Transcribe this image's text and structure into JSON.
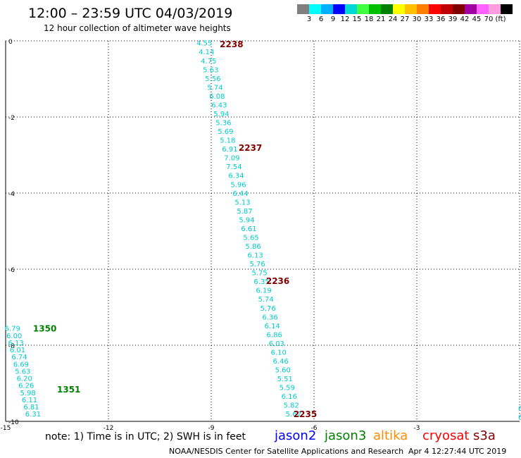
{
  "header": {
    "title": "12:00 – 23:59 UTC 04/03/2019",
    "subtitle": "12 hour collection of altimeter wave heights"
  },
  "color_scale": {
    "colors": [
      "#808080",
      "#00ffff",
      "#00b0ff",
      "#0000ff",
      "#00d8d8",
      "#40ff40",
      "#00c000",
      "#008000",
      "#ffff00",
      "#ffc000",
      "#ff8000",
      "#ff0000",
      "#c00000",
      "#800000",
      "#a000a0",
      "#ff60ff",
      "#ff9ce0",
      "#000000"
    ],
    "labels": [
      "3",
      "6",
      "9",
      "12",
      "15",
      "18",
      "21",
      "24",
      "27",
      "30",
      "33",
      "36",
      "39",
      "42",
      "45",
      "70",
      "(ft)"
    ]
  },
  "chart_data": {
    "type": "scatter",
    "title": "12:00 – 23:59 UTC 04/03/2019",
    "subtitle": "12 hour collection of altimeter wave heights",
    "xlim": [
      -15,
      0
    ],
    "ylim": [
      -10,
      0
    ],
    "xticks": [
      "-15",
      "-12",
      "-9",
      "-6",
      "-3"
    ],
    "yticks": [
      "0",
      "-2",
      "-4",
      "-6",
      "-8",
      "-10"
    ],
    "grid": true,
    "point_color": "#00cccc",
    "time_color_track1": "#800000",
    "time_color_track2": "#008000",
    "track1": {
      "satellite": "cryosat",
      "x_start": -9.2,
      "x_end": -6.6,
      "y_start": -0.05,
      "y_end": -9.8,
      "values": [
        "4.55",
        "4.14",
        "4.75",
        "5.63",
        "5.56",
        "5.74",
        "6.08",
        "6.43",
        "5.94",
        "5.36",
        "5.69",
        "5.18",
        "6.91",
        "7.09",
        "7.54",
        "6.34",
        "5.96",
        "6.44",
        "5.13",
        "5.87",
        "5.94",
        "6.61",
        "5.65",
        "5.86",
        "6.13",
        "5.76",
        "5.75",
        "6.35",
        "6.19",
        "5.74",
        "5.76",
        "6.36",
        "6.14",
        "6.86",
        "6.03",
        "6.10",
        "6.46",
        "5.60",
        "5.51",
        "5.59",
        "6.16",
        "5.82",
        "5.62"
      ]
    },
    "track1_times": [
      {
        "label": "2238",
        "x": -8.75,
        "y": -0.07
      },
      {
        "label": "2237",
        "x": -8.2,
        "y": -2.8
      },
      {
        "label": "2236",
        "x": -7.4,
        "y": -6.3
      },
      {
        "label": "2235",
        "x": -6.6,
        "y": -9.8
      }
    ],
    "track2": {
      "satellite": "jason3",
      "x_start": -14.8,
      "x_end": -14.2,
      "y_start": -7.55,
      "y_end": -9.8,
      "values": [
        "6.79",
        "6.00",
        "6.13",
        "6.01",
        "6.74",
        "6.69",
        "5.63",
        "6.20",
        "6.26",
        "5.98",
        "6.11",
        "6.81",
        "6.31"
      ]
    },
    "track2_times": [
      {
        "label": "1350",
        "x": -14.2,
        "y": -7.55
      },
      {
        "label": "1351",
        "x": -13.5,
        "y": -9.15
      }
    ],
    "edge_points": [
      {
        "value": "6",
        "x": 0.0,
        "y": -9.65
      },
      {
        "value": "6",
        "x": 0.0,
        "y": -9.88
      }
    ]
  },
  "footer": {
    "note": "note:  1) Time is in UTC;  2) SWH is in feet",
    "credit": "NOAA/NESDIS Center for Satellite Applications and Research",
    "timestamp": "Apr  4 12:27:44 UTC 2019"
  },
  "legend": [
    {
      "name": "jason2",
      "color": "#0000ff"
    },
    {
      "name": "jason3",
      "color": "#008000"
    },
    {
      "name": "altika",
      "color": "#ff8c00"
    },
    {
      "name": "cryosat",
      "color": "#ff0000"
    },
    {
      "name": "s3a",
      "color": "#800000"
    }
  ]
}
